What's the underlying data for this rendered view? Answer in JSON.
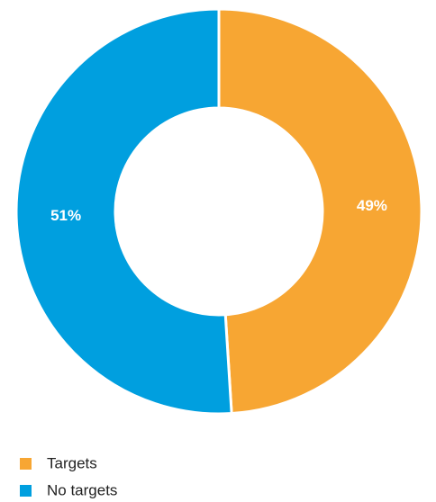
{
  "chart_data": {
    "type": "donut",
    "categories": [
      "Targets",
      "No targets"
    ],
    "values": [
      49,
      51
    ],
    "value_labels": [
      "49%",
      "51%"
    ],
    "colors": [
      "#f7a633",
      "#009fdf"
    ],
    "legend": "bottom-left"
  }
}
